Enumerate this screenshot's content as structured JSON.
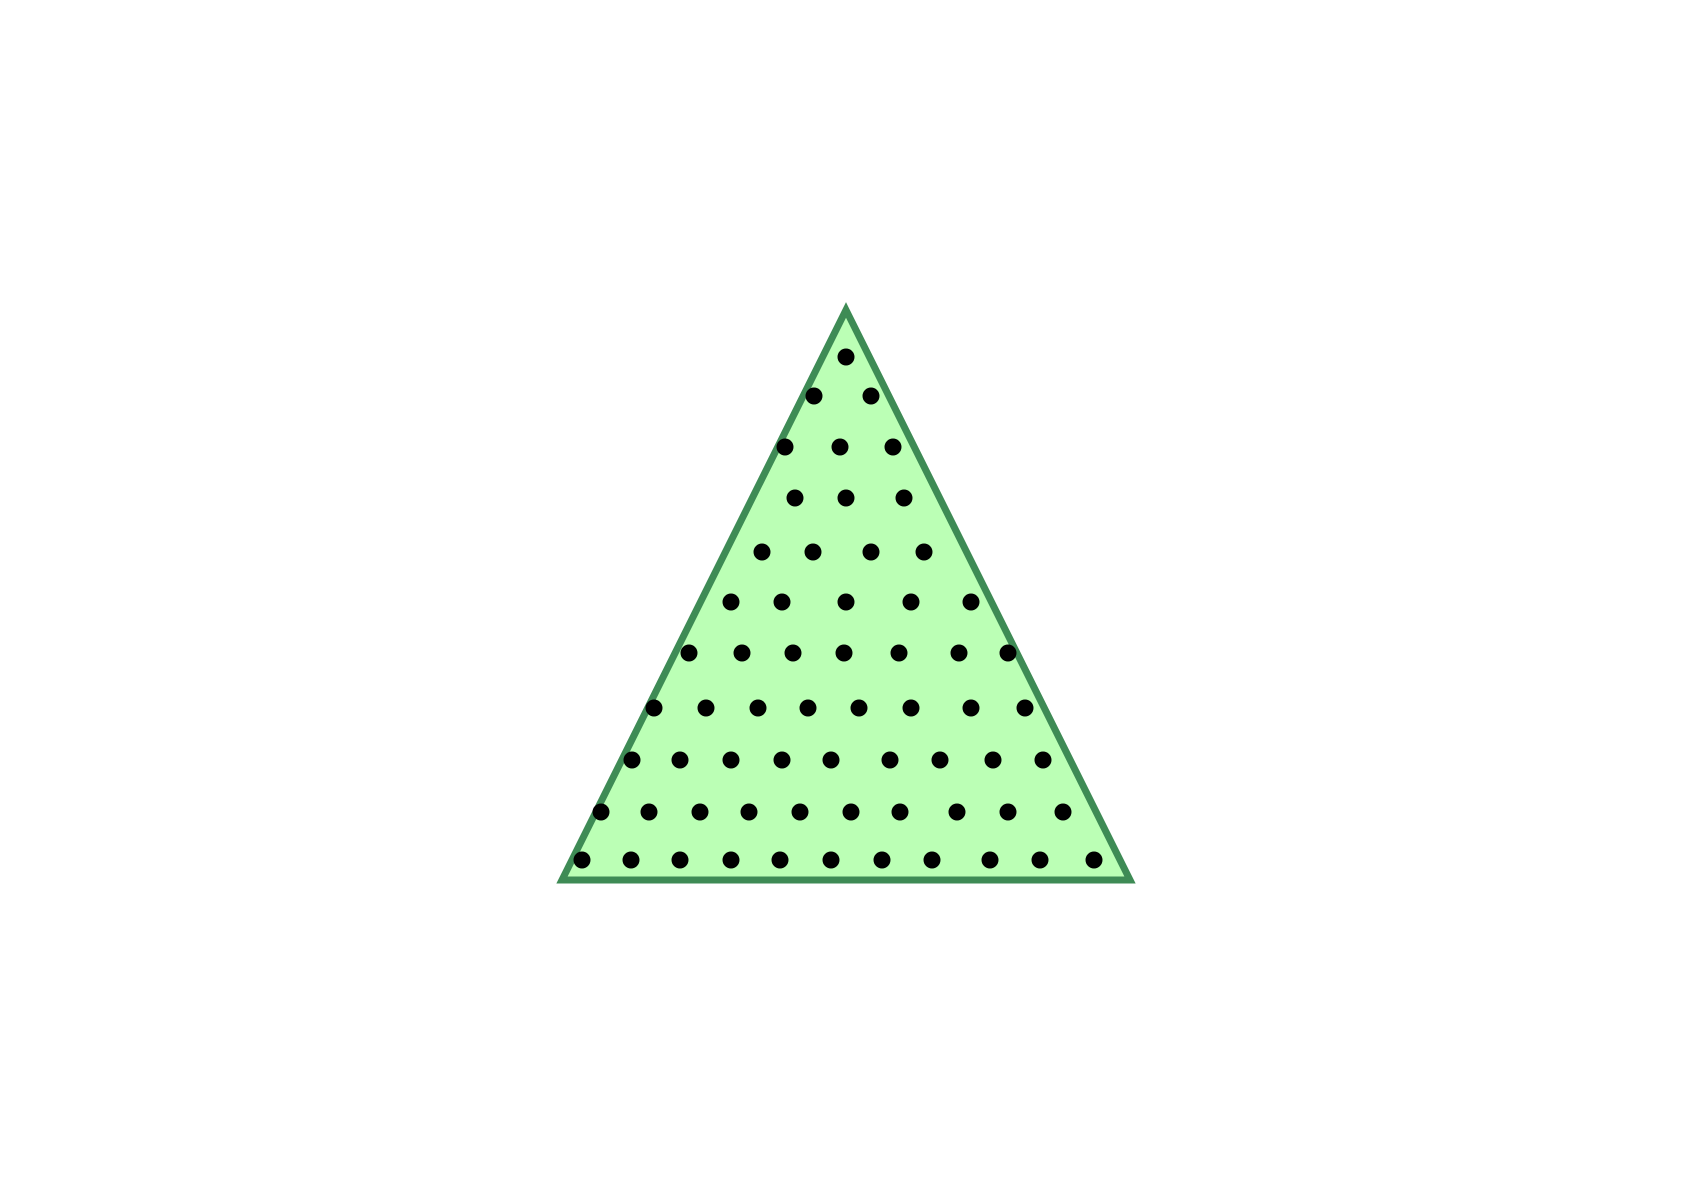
{
  "diagram": {
    "shape": "triangle",
    "fill_color": "#bbffb5",
    "stroke_color": "#3e8b55",
    "dot_color": "#000000",
    "row_counts": [
      1,
      2,
      3,
      3,
      4,
      5,
      7,
      8,
      9,
      10,
      11
    ]
  }
}
